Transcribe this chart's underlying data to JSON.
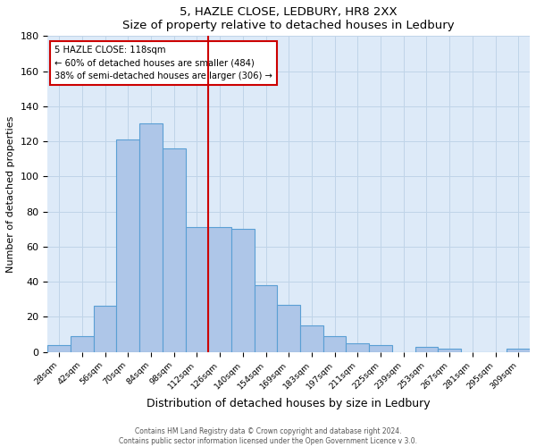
{
  "title": "5, HAZLE CLOSE, LEDBURY, HR8 2XX",
  "subtitle": "Size of property relative to detached houses in Ledbury",
  "xlabel": "Distribution of detached houses by size in Ledbury",
  "ylabel": "Number of detached properties",
  "bin_labels": [
    "28sqm",
    "42sqm",
    "56sqm",
    "70sqm",
    "84sqm",
    "98sqm",
    "112sqm",
    "126sqm",
    "140sqm",
    "154sqm",
    "169sqm",
    "183sqm",
    "197sqm",
    "211sqm",
    "225sqm",
    "239sqm",
    "253sqm",
    "267sqm",
    "281sqm",
    "295sqm",
    "309sqm"
  ],
  "bar_values": [
    4,
    9,
    26,
    121,
    130,
    116,
    71,
    71,
    70,
    38,
    27,
    15,
    9,
    5,
    4,
    0,
    3,
    2,
    0,
    0,
    2
  ],
  "bar_color": "#aec6e8",
  "bar_edge_color": "#5a9fd4",
  "vline_x": 7.5,
  "vline_color": "#cc0000",
  "property_label": "5 HAZLE CLOSE: 118sqm",
  "annotation_line1": "← 60% of detached houses are smaller (484)",
  "annotation_line2": "38% of semi-detached houses are larger (306) →",
  "annotation_box_edge": "#cc0000",
  "ylim": [
    0,
    180
  ],
  "yticks": [
    0,
    20,
    40,
    60,
    80,
    100,
    120,
    140,
    160,
    180
  ],
  "footnote1": "Contains HM Land Registry data © Crown copyright and database right 2024.",
  "footnote2": "Contains public sector information licensed under the Open Government Licence v 3.0.",
  "bg_color": "#ddeaf8",
  "plot_bg_color": "#ffffff",
  "grid_color": "#c0d4e8"
}
